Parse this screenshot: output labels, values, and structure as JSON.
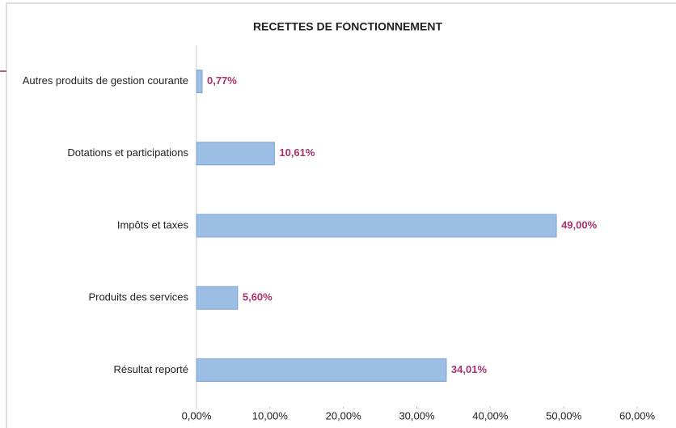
{
  "chart_data": {
    "type": "barh",
    "title": "RECETTES DE FONCTIONNEMENT",
    "categories": [
      "Autres produits de gestion courante",
      "Dotations et participations",
      "Impôts et taxes",
      "Produits des services",
      "Résultat reporté"
    ],
    "values": [
      0.77,
      10.61,
      49.0,
      5.6,
      34.01
    ],
    "value_labels": [
      "0,77%",
      "10,61%",
      "49,00%",
      "5,60%",
      "34,01%"
    ],
    "color": "#9cbde4",
    "label_color": "#a8336d",
    "xlim": [
      0,
      60
    ],
    "xticks": [
      {
        "value": 0,
        "label": "0,00%"
      },
      {
        "value": 10,
        "label": "10,00%"
      },
      {
        "value": 20,
        "label": "20,00%"
      },
      {
        "value": 30,
        "label": "30,00%"
      },
      {
        "value": 40,
        "label": "40,00%"
      },
      {
        "value": 50,
        "label": "50,00%"
      },
      {
        "value": 60,
        "label": "60,00%"
      }
    ],
    "grid": false
  }
}
